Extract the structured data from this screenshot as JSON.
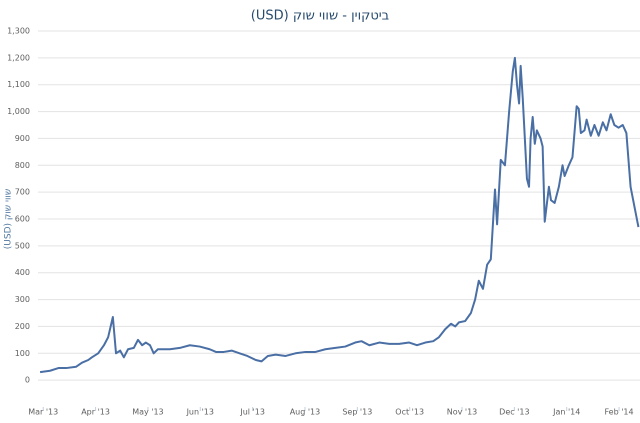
{
  "chart_data": {
    "type": "line",
    "title": "ביטקוין - שווי שוק (USD)",
    "y_label": "שווי שוק (USD)",
    "grid": true,
    "xlim": [
      -0.1,
      11.4
    ],
    "xticks": [
      {
        "value": 0,
        "label": "Mar '13"
      },
      {
        "value": 1,
        "label": "Apr '13"
      },
      {
        "value": 2,
        "label": "May '13"
      },
      {
        "value": 3,
        "label": "Jun '13"
      },
      {
        "value": 4,
        "label": "Jul '13"
      },
      {
        "value": 5,
        "label": "Aug '13"
      },
      {
        "value": 6,
        "label": "Sep '13"
      },
      {
        "value": 7,
        "label": "Oct '13"
      },
      {
        "value": 8,
        "label": "Nov '13"
      },
      {
        "value": 9,
        "label": "Dec '13"
      },
      {
        "value": 10,
        "label": "Jan '14"
      },
      {
        "value": 11,
        "label": "Feb '14"
      }
    ],
    "ylim": [
      -100,
      1300
    ],
    "yticks": [
      0,
      100,
      200,
      300,
      400,
      500,
      600,
      700,
      800,
      900,
      {
        "value": 1000,
        "label": "1,000"
      },
      {
        "value": 1100,
        "label": "1,100"
      },
      {
        "value": 1200,
        "label": "1,200"
      },
      {
        "value": 1300,
        "label": "1,300"
      }
    ],
    "x": [
      -0.06,
      0.13,
      0.29,
      0.44,
      0.63,
      0.74,
      0.86,
      0.93,
      1.05,
      1.16,
      1.24,
      1.33,
      1.39,
      1.47,
      1.54,
      1.62,
      1.73,
      1.81,
      1.89,
      1.96,
      2.04,
      2.11,
      2.19,
      2.3,
      2.42,
      2.61,
      2.8,
      2.99,
      3.18,
      3.3,
      3.45,
      3.6,
      3.75,
      3.9,
      4.06,
      4.17,
      4.29,
      4.44,
      4.63,
      4.82,
      5.01,
      5.2,
      5.39,
      5.58,
      5.77,
      5.96,
      6.08,
      6.23,
      6.42,
      6.61,
      6.8,
      6.99,
      7.14,
      7.3,
      7.45,
      7.56,
      7.68,
      7.79,
      7.87,
      7.94,
      8.06,
      8.17,
      8.25,
      8.32,
      8.4,
      8.48,
      8.55,
      8.63,
      8.67,
      8.74,
      8.82,
      8.9,
      8.97,
      9.01,
      9.05,
      9.09,
      9.12,
      9.16,
      9.24,
      9.28,
      9.31,
      9.35,
      9.39,
      9.43,
      9.5,
      9.54,
      9.58,
      9.66,
      9.7,
      9.77,
      9.85,
      9.92,
      9.96,
      10.04,
      10.11,
      10.19,
      10.23,
      10.27,
      10.34,
      10.38,
      10.46,
      10.53,
      10.61,
      10.69,
      10.76,
      10.84,
      10.91,
      10.99,
      11.07,
      11.14,
      11.22,
      11.3,
      11.37
    ],
    "series": [
      {
        "color": "#4a6fa5",
        "values": [
          30,
          35,
          45,
          45,
          50,
          65,
          75,
          85,
          100,
          130,
          160,
          235,
          100,
          110,
          85,
          115,
          120,
          150,
          130,
          140,
          130,
          100,
          115,
          115,
          115,
          120,
          130,
          125,
          115,
          105,
          105,
          110,
          100,
          90,
          75,
          70,
          90,
          95,
          90,
          100,
          105,
          105,
          115,
          120,
          125,
          140,
          145,
          130,
          140,
          135,
          135,
          140,
          130,
          140,
          145,
          160,
          190,
          210,
          200,
          215,
          220,
          250,
          300,
          370,
          340,
          430,
          450,
          710,
          580,
          820,
          800,
          1000,
          1150,
          1200,
          1100,
          1030,
          1170,
          1050,
          750,
          720,
          900,
          980,
          880,
          930,
          900,
          870,
          590,
          720,
          670,
          660,
          720,
          800,
          760,
          800,
          830,
          1020,
          1010,
          920,
          930,
          970,
          910,
          950,
          910,
          960,
          930,
          990,
          950,
          940,
          950,
          920,
          720,
          640,
          570
        ]
      }
    ]
  }
}
